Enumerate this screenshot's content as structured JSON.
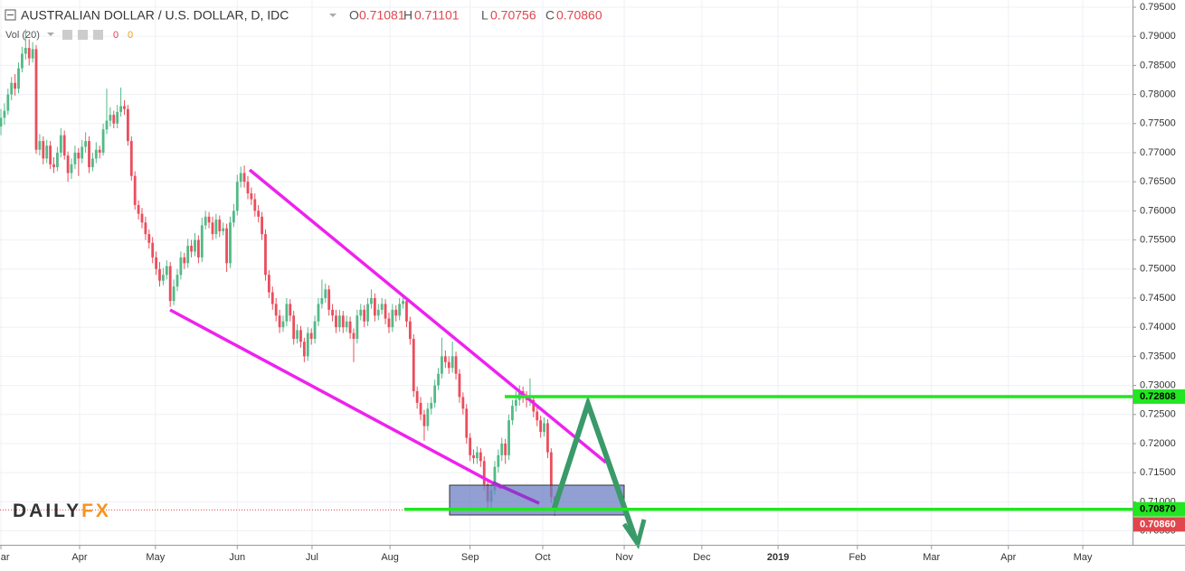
{
  "chart_data": {
    "type": "candlestick",
    "header": {
      "title": "AUSTRALIAN DOLLAR / U.S. DOLLAR, D, IDC",
      "o": "O",
      "o_value": "0.71081",
      "h": "H",
      "h_value": "0.71101",
      "l": "L",
      "l_value": "0.70756",
      "c": "C",
      "c_value": "0.70860"
    },
    "volume_label": "Vol (20)",
    "volume_values": [
      "0",
      "0"
    ],
    "logo": {
      "part1": "DAILY",
      "part2": "FX"
    },
    "up_color": "#53b987",
    "down_color": "#eb4d5c",
    "open": [
      0.7745,
      0.776,
      0.7772,
      0.78,
      0.782,
      0.781,
      0.7845,
      0.787,
      0.788,
      0.7862,
      0.7878,
      0.7705,
      0.772,
      0.769,
      0.7712,
      0.768,
      0.7675,
      0.77,
      0.773,
      0.7695,
      0.7665,
      0.768,
      0.77,
      0.769,
      0.771,
      0.772,
      0.7675,
      0.769,
      0.7705,
      0.77,
      0.774,
      0.7755,
      0.7765,
      0.775,
      0.777,
      0.778,
      0.7775,
      0.772,
      0.766,
      0.761,
      0.7595,
      0.758,
      0.756,
      0.7545,
      0.752,
      0.75,
      0.748,
      0.749,
      0.7505,
      0.7445,
      0.747,
      0.749,
      0.752,
      0.751,
      0.754,
      0.753,
      0.755,
      0.752,
      0.7575,
      0.759,
      0.758,
      0.756,
      0.7585,
      0.7565,
      0.757,
      0.751,
      0.758,
      0.76,
      0.765,
      0.7665,
      0.765,
      0.763,
      0.762,
      0.76,
      0.759,
      0.756,
      0.749,
      0.746,
      0.744,
      0.742,
      0.74,
      0.741,
      0.744,
      0.742,
      0.738,
      0.7395,
      0.7375,
      0.735,
      0.739,
      0.738,
      0.741,
      0.744,
      0.745,
      0.7465,
      0.743,
      0.742,
      0.74,
      0.742,
      0.74,
      0.741,
      0.739,
      0.738,
      0.742,
      0.743,
      0.741,
      0.744,
      0.745,
      0.742,
      0.743,
      0.744,
      0.7415,
      0.74,
      0.743,
      0.742,
      0.744,
      0.7445,
      0.741,
      0.738,
      0.729,
      0.727,
      0.725,
      0.723,
      0.726,
      0.727,
      0.73,
      0.732,
      0.735,
      0.734,
      0.733,
      0.735,
      0.732,
      0.728,
      0.726,
      0.721,
      0.718,
      0.7175,
      0.7185,
      0.717,
      0.713,
      0.71,
      0.712,
      0.716,
      0.718,
      0.72,
      0.718,
      0.724,
      0.7265,
      0.7275,
      0.729,
      0.728,
      0.7275,
      0.7275,
      0.7255,
      0.724,
      0.722,
      0.7235,
      0.7185,
      0.71081
    ],
    "high": [
      0.7775,
      0.7785,
      0.781,
      0.783,
      0.7835,
      0.7855,
      0.7882,
      0.7912,
      0.7895,
      0.789,
      0.7885,
      0.7732,
      0.7728,
      0.7722,
      0.772,
      0.7692,
      0.771,
      0.7742,
      0.7738,
      0.7702,
      0.769,
      0.7712,
      0.7708,
      0.7722,
      0.7735,
      0.7728,
      0.77,
      0.7718,
      0.7712,
      0.775,
      0.781,
      0.7778,
      0.7772,
      0.7782,
      0.7812,
      0.779,
      0.7782,
      0.7728,
      0.7668,
      0.7618,
      0.7605,
      0.759,
      0.7568,
      0.7555,
      0.753,
      0.7512,
      0.7502,
      0.7515,
      0.7512,
      0.7482,
      0.75,
      0.753,
      0.7528,
      0.7552,
      0.755,
      0.7562,
      0.7558,
      0.7588,
      0.76,
      0.7598,
      0.759,
      0.7595,
      0.7592,
      0.758,
      0.7578,
      0.759,
      0.7612,
      0.7662,
      0.7676,
      0.7678,
      0.766,
      0.764,
      0.763,
      0.761,
      0.7598,
      0.7568,
      0.7498,
      0.747,
      0.745,
      0.743,
      0.742,
      0.745,
      0.7448,
      0.7428,
      0.7405,
      0.7402,
      0.7382,
      0.74,
      0.7398,
      0.742,
      0.745,
      0.7482,
      0.7475,
      0.7472,
      0.744,
      0.743,
      0.743,
      0.7428,
      0.742,
      0.7418,
      0.7398,
      0.743,
      0.744,
      0.7438,
      0.745,
      0.7465,
      0.7458,
      0.744,
      0.745,
      0.7448,
      0.7425,
      0.744,
      0.7438,
      0.745,
      0.7455,
      0.7452,
      0.7418,
      0.7388,
      0.7298,
      0.728,
      0.7258,
      0.727,
      0.728,
      0.731,
      0.733,
      0.7382,
      0.736,
      0.735,
      0.7375,
      0.7358,
      0.7328,
      0.7288,
      0.7268,
      0.7218,
      0.719,
      0.7195,
      0.7192,
      0.7178,
      0.7138,
      0.713,
      0.717,
      0.719,
      0.721,
      0.7208,
      0.725,
      0.7275,
      0.729,
      0.73,
      0.7298,
      0.729,
      0.7312,
      0.7282,
      0.7262,
      0.7248,
      0.7245,
      0.7242,
      0.7192,
      0.71101
    ],
    "low": [
      0.773,
      0.7748,
      0.7765,
      0.779,
      0.7798,
      0.7802,
      0.7838,
      0.786,
      0.785,
      0.7855,
      0.7698,
      0.7695,
      0.768,
      0.7682,
      0.7672,
      0.7665,
      0.7668,
      0.7692,
      0.7688,
      0.765,
      0.7655,
      0.7672,
      0.766,
      0.7682,
      0.77,
      0.7665,
      0.7668,
      0.7682,
      0.769,
      0.7695,
      0.7732,
      0.7745,
      0.7742,
      0.7742,
      0.7762,
      0.7765,
      0.7712,
      0.7652,
      0.7602,
      0.7585,
      0.757,
      0.755,
      0.7535,
      0.751,
      0.749,
      0.747,
      0.7472,
      0.7482,
      0.7435,
      0.7438,
      0.7462,
      0.7482,
      0.75,
      0.7502,
      0.752,
      0.7522,
      0.751,
      0.7512,
      0.7568,
      0.757,
      0.755,
      0.7552,
      0.7555,
      0.7558,
      0.7495,
      0.7502,
      0.7572,
      0.7592,
      0.764,
      0.764,
      0.762,
      0.761,
      0.759,
      0.758,
      0.755,
      0.748,
      0.745,
      0.743,
      0.741,
      0.739,
      0.7392,
      0.7402,
      0.741,
      0.737,
      0.7372,
      0.7365,
      0.734,
      0.7342,
      0.737,
      0.7372,
      0.7402,
      0.7432,
      0.7442,
      0.742,
      0.741,
      0.739,
      0.7392,
      0.739,
      0.7392,
      0.738,
      0.734,
      0.7372,
      0.7412,
      0.74,
      0.7402,
      0.7432,
      0.741,
      0.7412,
      0.7422,
      0.7405,
      0.739,
      0.7392,
      0.741,
      0.7412,
      0.7432,
      0.74,
      0.737,
      0.728,
      0.726,
      0.724,
      0.7205,
      0.7222,
      0.725,
      0.7262,
      0.7292,
      0.7312,
      0.733,
      0.732,
      0.7322,
      0.731,
      0.727,
      0.725,
      0.72,
      0.717,
      0.7165,
      0.7165,
      0.716,
      0.712,
      0.7085,
      0.709,
      0.7112,
      0.715,
      0.717,
      0.7165,
      0.7172,
      0.7232,
      0.7255,
      0.7265,
      0.727,
      0.7262,
      0.7265,
      0.7245,
      0.723,
      0.721,
      0.7212,
      0.7175,
      0.7098,
      0.70756
    ],
    "close": [
      0.776,
      0.7772,
      0.78,
      0.782,
      0.781,
      0.7845,
      0.787,
      0.788,
      0.7862,
      0.7878,
      0.7705,
      0.772,
      0.769,
      0.7712,
      0.768,
      0.7675,
      0.77,
      0.773,
      0.7695,
      0.7665,
      0.768,
      0.77,
      0.769,
      0.771,
      0.772,
      0.7675,
      0.769,
      0.7705,
      0.77,
      0.774,
      0.7755,
      0.7765,
      0.775,
      0.777,
      0.778,
      0.7775,
      0.772,
      0.766,
      0.761,
      0.7595,
      0.758,
      0.756,
      0.7545,
      0.752,
      0.75,
      0.748,
      0.749,
      0.7505,
      0.7445,
      0.747,
      0.749,
      0.752,
      0.751,
      0.754,
      0.753,
      0.755,
      0.752,
      0.7575,
      0.759,
      0.758,
      0.756,
      0.7585,
      0.7565,
      0.757,
      0.751,
      0.758,
      0.76,
      0.765,
      0.7665,
      0.765,
      0.763,
      0.762,
      0.76,
      0.759,
      0.756,
      0.749,
      0.746,
      0.744,
      0.742,
      0.74,
      0.741,
      0.744,
      0.742,
      0.738,
      0.7395,
      0.7375,
      0.735,
      0.739,
      0.738,
      0.741,
      0.744,
      0.745,
      0.7465,
      0.743,
      0.742,
      0.74,
      0.742,
      0.74,
      0.741,
      0.739,
      0.738,
      0.742,
      0.743,
      0.741,
      0.744,
      0.745,
      0.742,
      0.743,
      0.744,
      0.7415,
      0.74,
      0.743,
      0.742,
      0.744,
      0.7445,
      0.741,
      0.738,
      0.729,
      0.727,
      0.725,
      0.723,
      0.726,
      0.727,
      0.73,
      0.732,
      0.735,
      0.734,
      0.733,
      0.735,
      0.732,
      0.728,
      0.726,
      0.721,
      0.718,
      0.7175,
      0.7185,
      0.717,
      0.713,
      0.71,
      0.712,
      0.716,
      0.718,
      0.72,
      0.718,
      0.724,
      0.7265,
      0.7275,
      0.729,
      0.728,
      0.7275,
      0.7275,
      0.7255,
      0.724,
      0.722,
      0.7235,
      0.7185,
      0.7108,
      0.7086
    ],
    "xlim": [
      -0.26,
      320.8
    ],
    "xticks": [
      {
        "value": 0,
        "label": "Mar"
      },
      {
        "value": 22.3,
        "label": "Apr"
      },
      {
        "value": 43.8,
        "label": "May"
      },
      {
        "value": 67,
        "label": "Jun"
      },
      {
        "value": 88.2,
        "label": "Jul"
      },
      {
        "value": 110.3,
        "label": "Aug"
      },
      {
        "value": 133,
        "label": "Sep"
      },
      {
        "value": 153.6,
        "label": "Oct"
      },
      {
        "value": 176.7,
        "label": "Nov"
      },
      {
        "value": 198.7,
        "label": "Dec"
      },
      {
        "value": 220.3,
        "label": "2019"
      },
      {
        "value": 242.8,
        "label": "Feb"
      },
      {
        "value": 263.8,
        "label": "Mar"
      },
      {
        "value": 285.6,
        "label": "Apr"
      },
      {
        "value": 306.7,
        "label": "May"
      }
    ],
    "ylim": [
      0.70307,
      0.79624
    ],
    "yticks": [
      {
        "value": 0.705,
        "label": "0.70500"
      },
      {
        "value": 0.71,
        "label": "0.71000"
      },
      {
        "value": 0.715,
        "label": "0.71500"
      },
      {
        "value": 0.72,
        "label": "0.72000"
      },
      {
        "value": 0.725,
        "label": "0.72500"
      },
      {
        "value": 0.73,
        "label": "0.73000"
      },
      {
        "value": 0.735,
        "label": "0.73500"
      },
      {
        "value": 0.74,
        "label": "0.74000"
      },
      {
        "value": 0.745,
        "label": "0.74500"
      },
      {
        "value": 0.75,
        "label": "0.75000"
      },
      {
        "value": 0.755,
        "label": "0.75500"
      },
      {
        "value": 0.76,
        "label": "0.76000"
      },
      {
        "value": 0.765,
        "label": "0.76500"
      },
      {
        "value": 0.77,
        "label": "0.77000"
      },
      {
        "value": 0.775,
        "label": "0.77500"
      },
      {
        "value": 0.78,
        "label": "0.78000"
      },
      {
        "value": 0.785,
        "label": "0.78500"
      },
      {
        "value": 0.79,
        "label": "0.79000"
      },
      {
        "value": 0.795,
        "label": "0.79500"
      }
    ],
    "grid": true,
    "price_lines": [
      {
        "value": 0.72808,
        "label": "0.72808",
        "color": "#22e622"
      },
      {
        "value": 0.7087,
        "label": "0.70870",
        "color": "#22e622"
      },
      {
        "value": 0.7086,
        "label": "0.70860",
        "color": "#e0464d"
      }
    ]
  }
}
